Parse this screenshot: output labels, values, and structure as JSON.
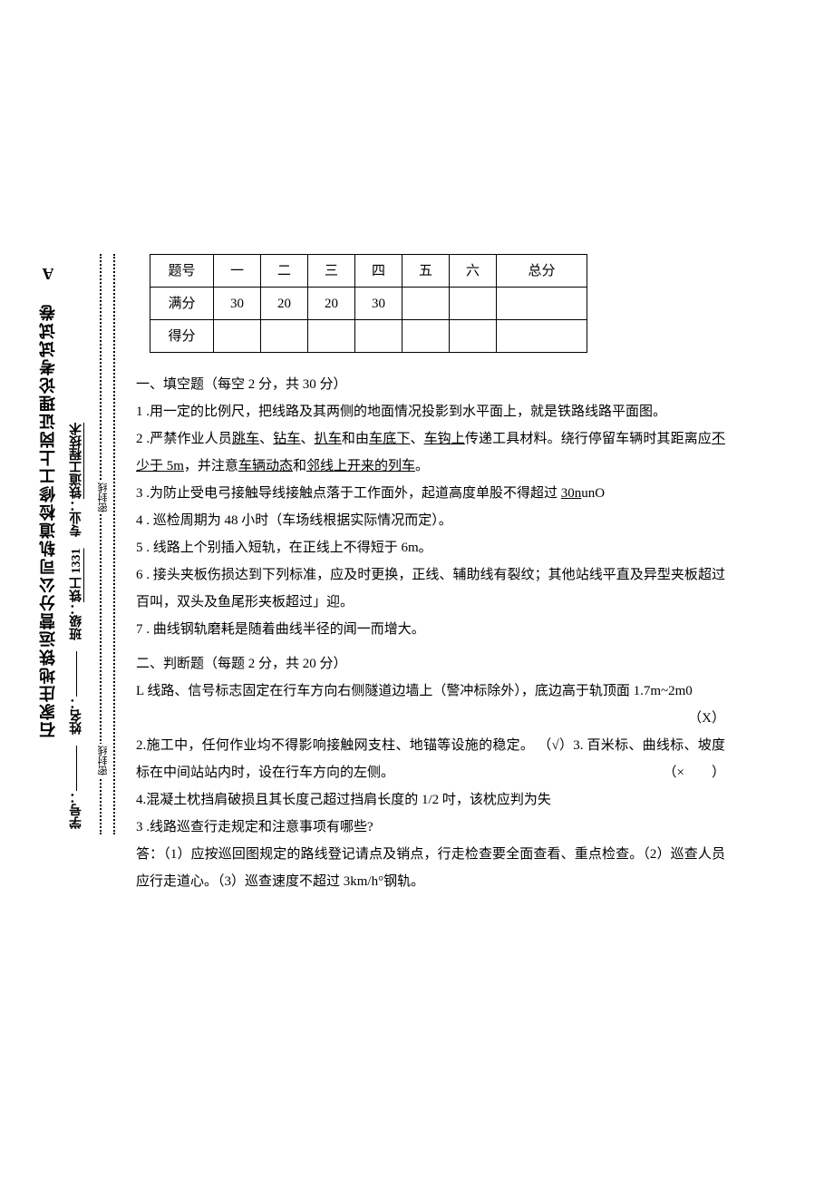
{
  "margin": {
    "title": "石家庄地铁运营分公司轨道检修工上岗证理论考试试卷 A",
    "major_label": "专业：",
    "major_value": "铁道工程技术",
    "class_label": "班级：",
    "class_value": "铁工 1331",
    "name_label": "姓名：",
    "id_label": "学号：",
    "seal": "密封线"
  },
  "score_table": {
    "row1": [
      "题号",
      "一",
      "二",
      "三",
      "四",
      "五",
      "六",
      "总分"
    ],
    "row2": [
      "满分",
      "30",
      "20",
      "20",
      "30",
      "",
      "",
      ""
    ],
    "row3": [
      "得分",
      "",
      "",
      "",
      "",
      "",
      "",
      ""
    ]
  },
  "s1": {
    "title": "一、填空题（每空 2 分，共 30 分）",
    "q1": "1  .用一定的比例尺，把线路及其两侧的地面情况投影到水平面上，就是铁路线路平面图。",
    "q2a": "2  .严禁作业人员",
    "q2_u1": "跳车",
    "q2_s1": "、",
    "q2_u2": "钻车",
    "q2_s2": "、",
    "q2_u3": "扒车",
    "q2b": "和由",
    "q2_u4": "车底下",
    "q2_s3": "、",
    "q2_u5": "车钩上",
    "q2c": "传递工具材料。绕行停留车辆时其距离应",
    "q2_u6": "不少于 5m",
    "q2d": "，并注意",
    "q2_u7": "车辆动态",
    "q2e": "和",
    "q2_u8": "邻线上开来的列车",
    "q2f": "。",
    "q3a": "3  .为防止受电弓接触导线接触点落于工作面外，起道高度单股不得超过 ",
    "q3_u": "30n",
    "q3b": "unO",
    "q4": "4  . 巡检周期为 48 小时（车场线根据实际情况而定）。",
    "q5": "5  . 线路上个别插入短轨，在正线上不得短于 6m。",
    "q6": "6  . 接头夹板伤损达到下列标准，应及时更换，正线、辅助线有裂纹；其他站线平直及异型夹板超过百叫，双头及鱼尾形夹板超过」迎。",
    "q7": "7  . 曲线钢轨磨耗是随着曲线半径的闻一而增大。"
  },
  "s2": {
    "title": "二、判断题（每题 2 分，共 20 分）",
    "q1a": "L 线路、信号标志固定在行车方向右侧隧道边墙上（警冲标除外），底边高于轨顶面 1.7m~2m0",
    "q1m": "（X）",
    "q2a": "2.施工中，任何作业均不得影响接触网支柱、地锚等设施的稳定。 （√）3. 百米标、曲线标、坡度标在中间站站内时，设在行车方向的左侧。",
    "q2m": "（×　　）",
    "q4": "4.混凝土枕挡肩破损且其长度己超过挡肩长度的 1/2 吋，该枕应判为失",
    "q3t": "3  .线路巡查行走规定和注意事项有哪些?",
    "q3a": "答：（1）应按巡回图规定的路线登记请点及销点，行走检查要全面查看、重点检查。（2）巡查人员应行走道心。（3）巡查速度不超过 3km/h°钢轨。"
  }
}
